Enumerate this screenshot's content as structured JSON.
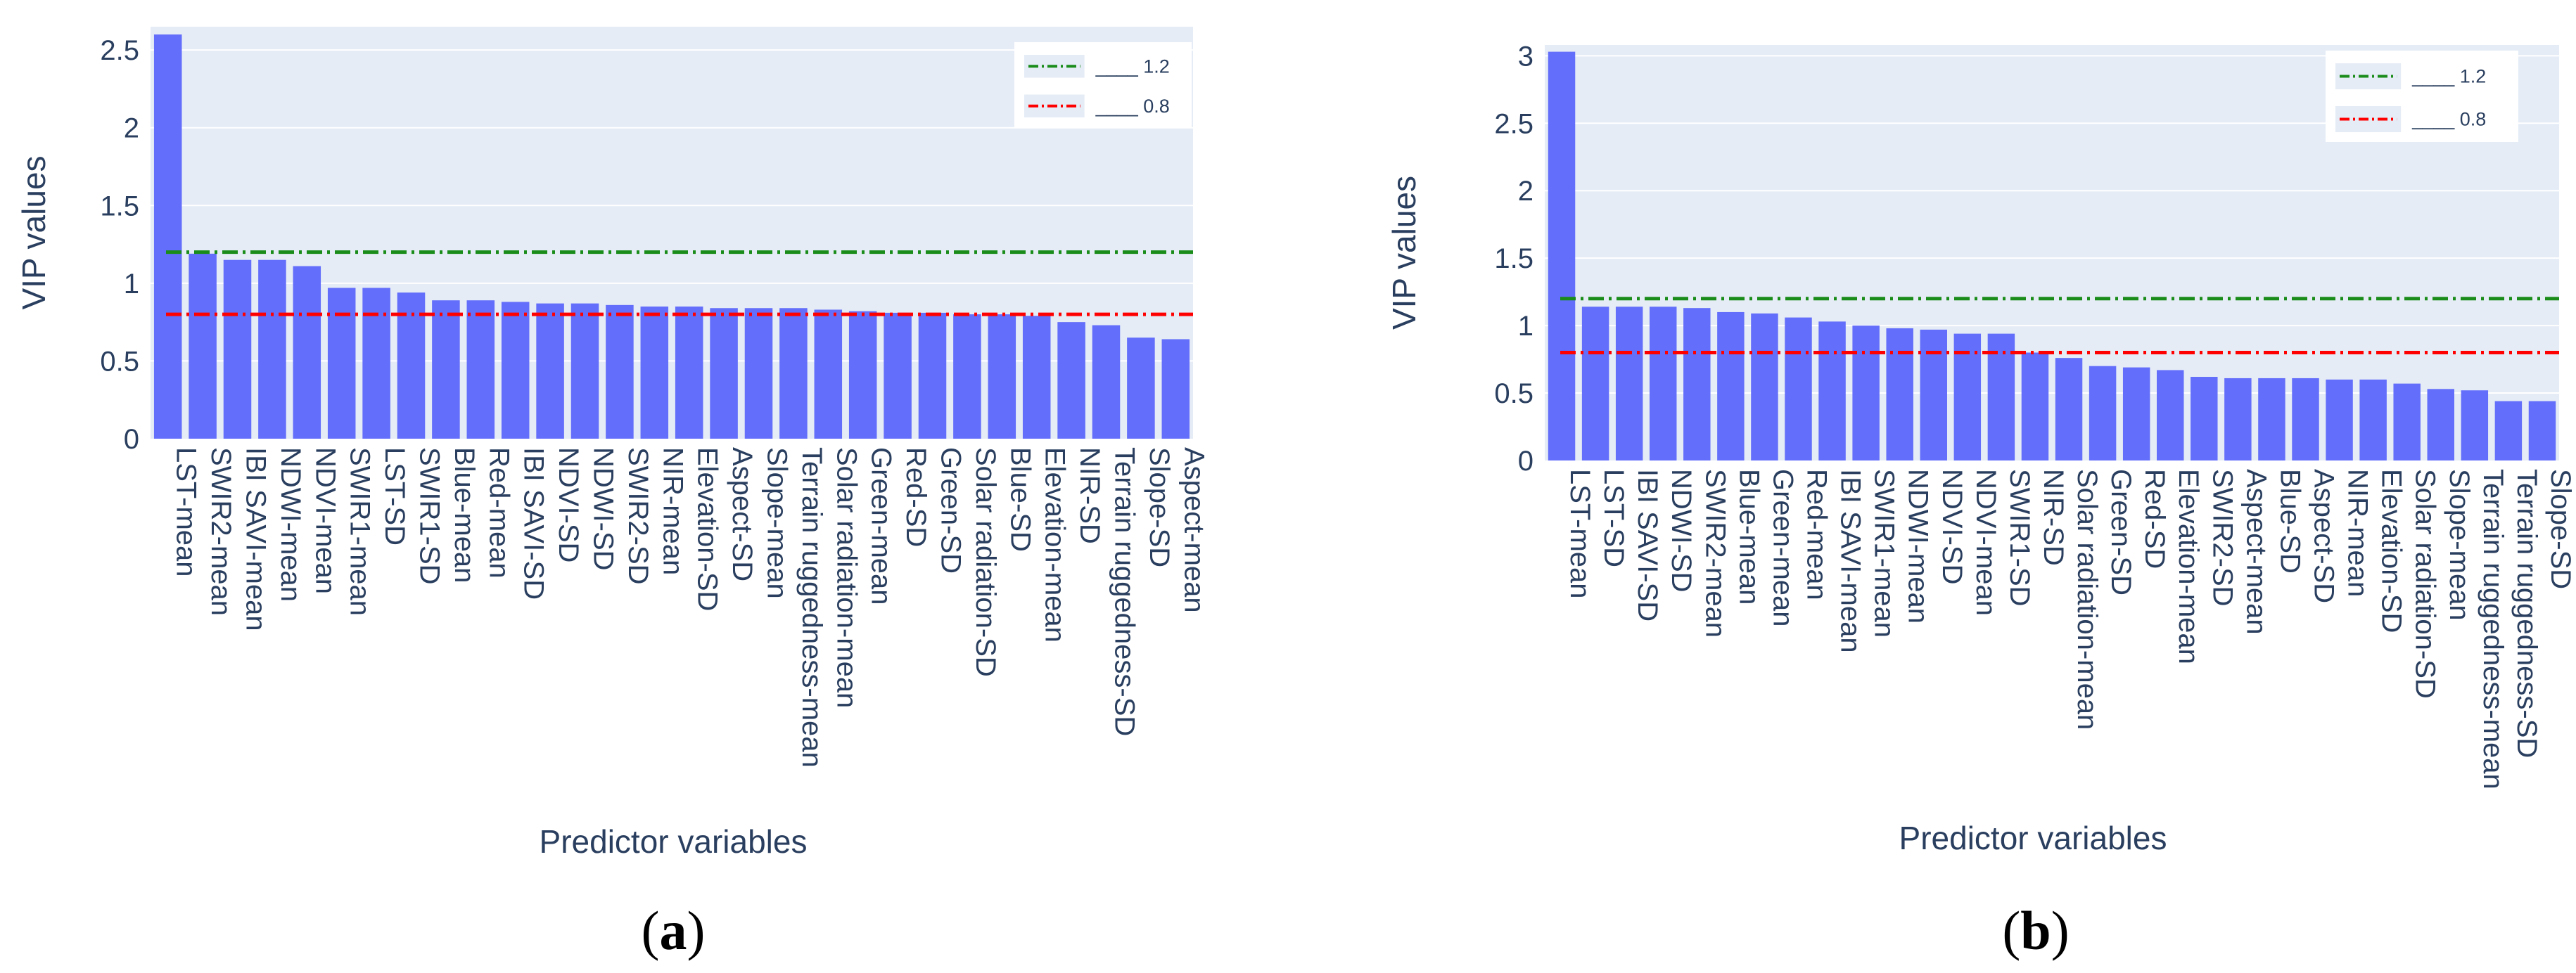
{
  "chart_data": [
    {
      "type": "bar",
      "panel_label": "(a)",
      "caption_letter": "a",
      "xlabel": "Predictor variables",
      "ylabel": "VIP values",
      "ylim": [
        0,
        2.65
      ],
      "yticks": [
        0,
        0.5,
        1,
        1.5,
        2,
        2.5
      ],
      "ytick_labels": [
        "0",
        "0.5",
        "1",
        "1.5",
        "2",
        "2.5"
      ],
      "grid": true,
      "legend_position": "top-right",
      "bar_color": "#636efa",
      "categories": [
        "LST-mean",
        "SWIR2-mean",
        "IBI SAVI-mean",
        "NDWI-mean",
        "NDVI-mean",
        "SWIR1-mean",
        "LST-SD",
        "SWIR1-SD",
        "Blue-mean",
        "Red-mean",
        "IBI SAVI-SD",
        "NDVI-SD",
        "NDWI-SD",
        "SWIR2-SD",
        "NIR-mean",
        "Elevation-SD",
        "Aspect-SD",
        "Slope-mean",
        "Terrain ruggedness-mean",
        "Solar radiation-mean",
        "Green-mean",
        "Red-SD",
        "Green-SD",
        "Solar radiation-SD",
        "Blue-SD",
        "Elevation-mean",
        "NIR-SD",
        "Terrain ruggedness-SD",
        "Slope-SD",
        "Aspect-mean"
      ],
      "values": [
        2.6,
        1.19,
        1.15,
        1.15,
        1.11,
        0.97,
        0.97,
        0.94,
        0.89,
        0.89,
        0.88,
        0.87,
        0.87,
        0.86,
        0.85,
        0.85,
        0.84,
        0.84,
        0.84,
        0.83,
        0.82,
        0.81,
        0.81,
        0.8,
        0.8,
        0.79,
        0.75,
        0.73,
        0.65,
        0.64
      ],
      "threshold_lines": [
        {
          "value": 1.2,
          "label": "____ 1.2",
          "color": "#1a8c1a"
        },
        {
          "value": 0.8,
          "label": "____ 0.8",
          "color": "#ff0000"
        }
      ]
    },
    {
      "type": "bar",
      "panel_label": "(b)",
      "caption_letter": "b",
      "xlabel": "Predictor variables",
      "ylabel": "VIP values",
      "ylim": [
        0,
        3.08
      ],
      "yticks": [
        0,
        0.5,
        1,
        1.5,
        2,
        2.5,
        3
      ],
      "ytick_labels": [
        "0",
        "0.5",
        "1",
        "1.5",
        "2",
        "2.5",
        "3"
      ],
      "grid": true,
      "legend_position": "top-right",
      "bar_color": "#636efa",
      "categories": [
        "LST-mean",
        "LST-SD",
        "IBI SAVI-SD",
        "NDWI-SD",
        "SWIR2-mean",
        "Blue-mean",
        "Green-mean",
        "Red-mean",
        "IBI SAVI-mean",
        "SWIR1-mean",
        "NDWI-mean",
        "NDVI-SD",
        "NDVI-mean",
        "SWIR1-SD",
        "NIR-SD",
        "Solar radiation-mean",
        "Green-SD",
        "Red-SD",
        "Elevation-mean",
        "SWIR2-SD",
        "Aspect-mean",
        "Blue-SD",
        "Aspect-SD",
        "NIR-mean",
        "Elevation-SD",
        "Solar radiation-SD",
        "Slope-mean",
        "Terrain ruggedness-mean",
        "Terrain ruggedness-SD",
        "Slope-SD"
      ],
      "values": [
        3.03,
        1.14,
        1.14,
        1.14,
        1.13,
        1.1,
        1.09,
        1.06,
        1.03,
        1.0,
        0.98,
        0.97,
        0.94,
        0.94,
        0.8,
        0.76,
        0.7,
        0.69,
        0.67,
        0.62,
        0.61,
        0.61,
        0.61,
        0.6,
        0.6,
        0.57,
        0.53,
        0.52,
        0.44,
        0.44
      ],
      "threshold_lines": [
        {
          "value": 1.2,
          "label": "____ 1.2",
          "color": "#1a8c1a"
        },
        {
          "value": 0.8,
          "label": "____ 0.8",
          "color": "#ff0000"
        }
      ]
    }
  ]
}
